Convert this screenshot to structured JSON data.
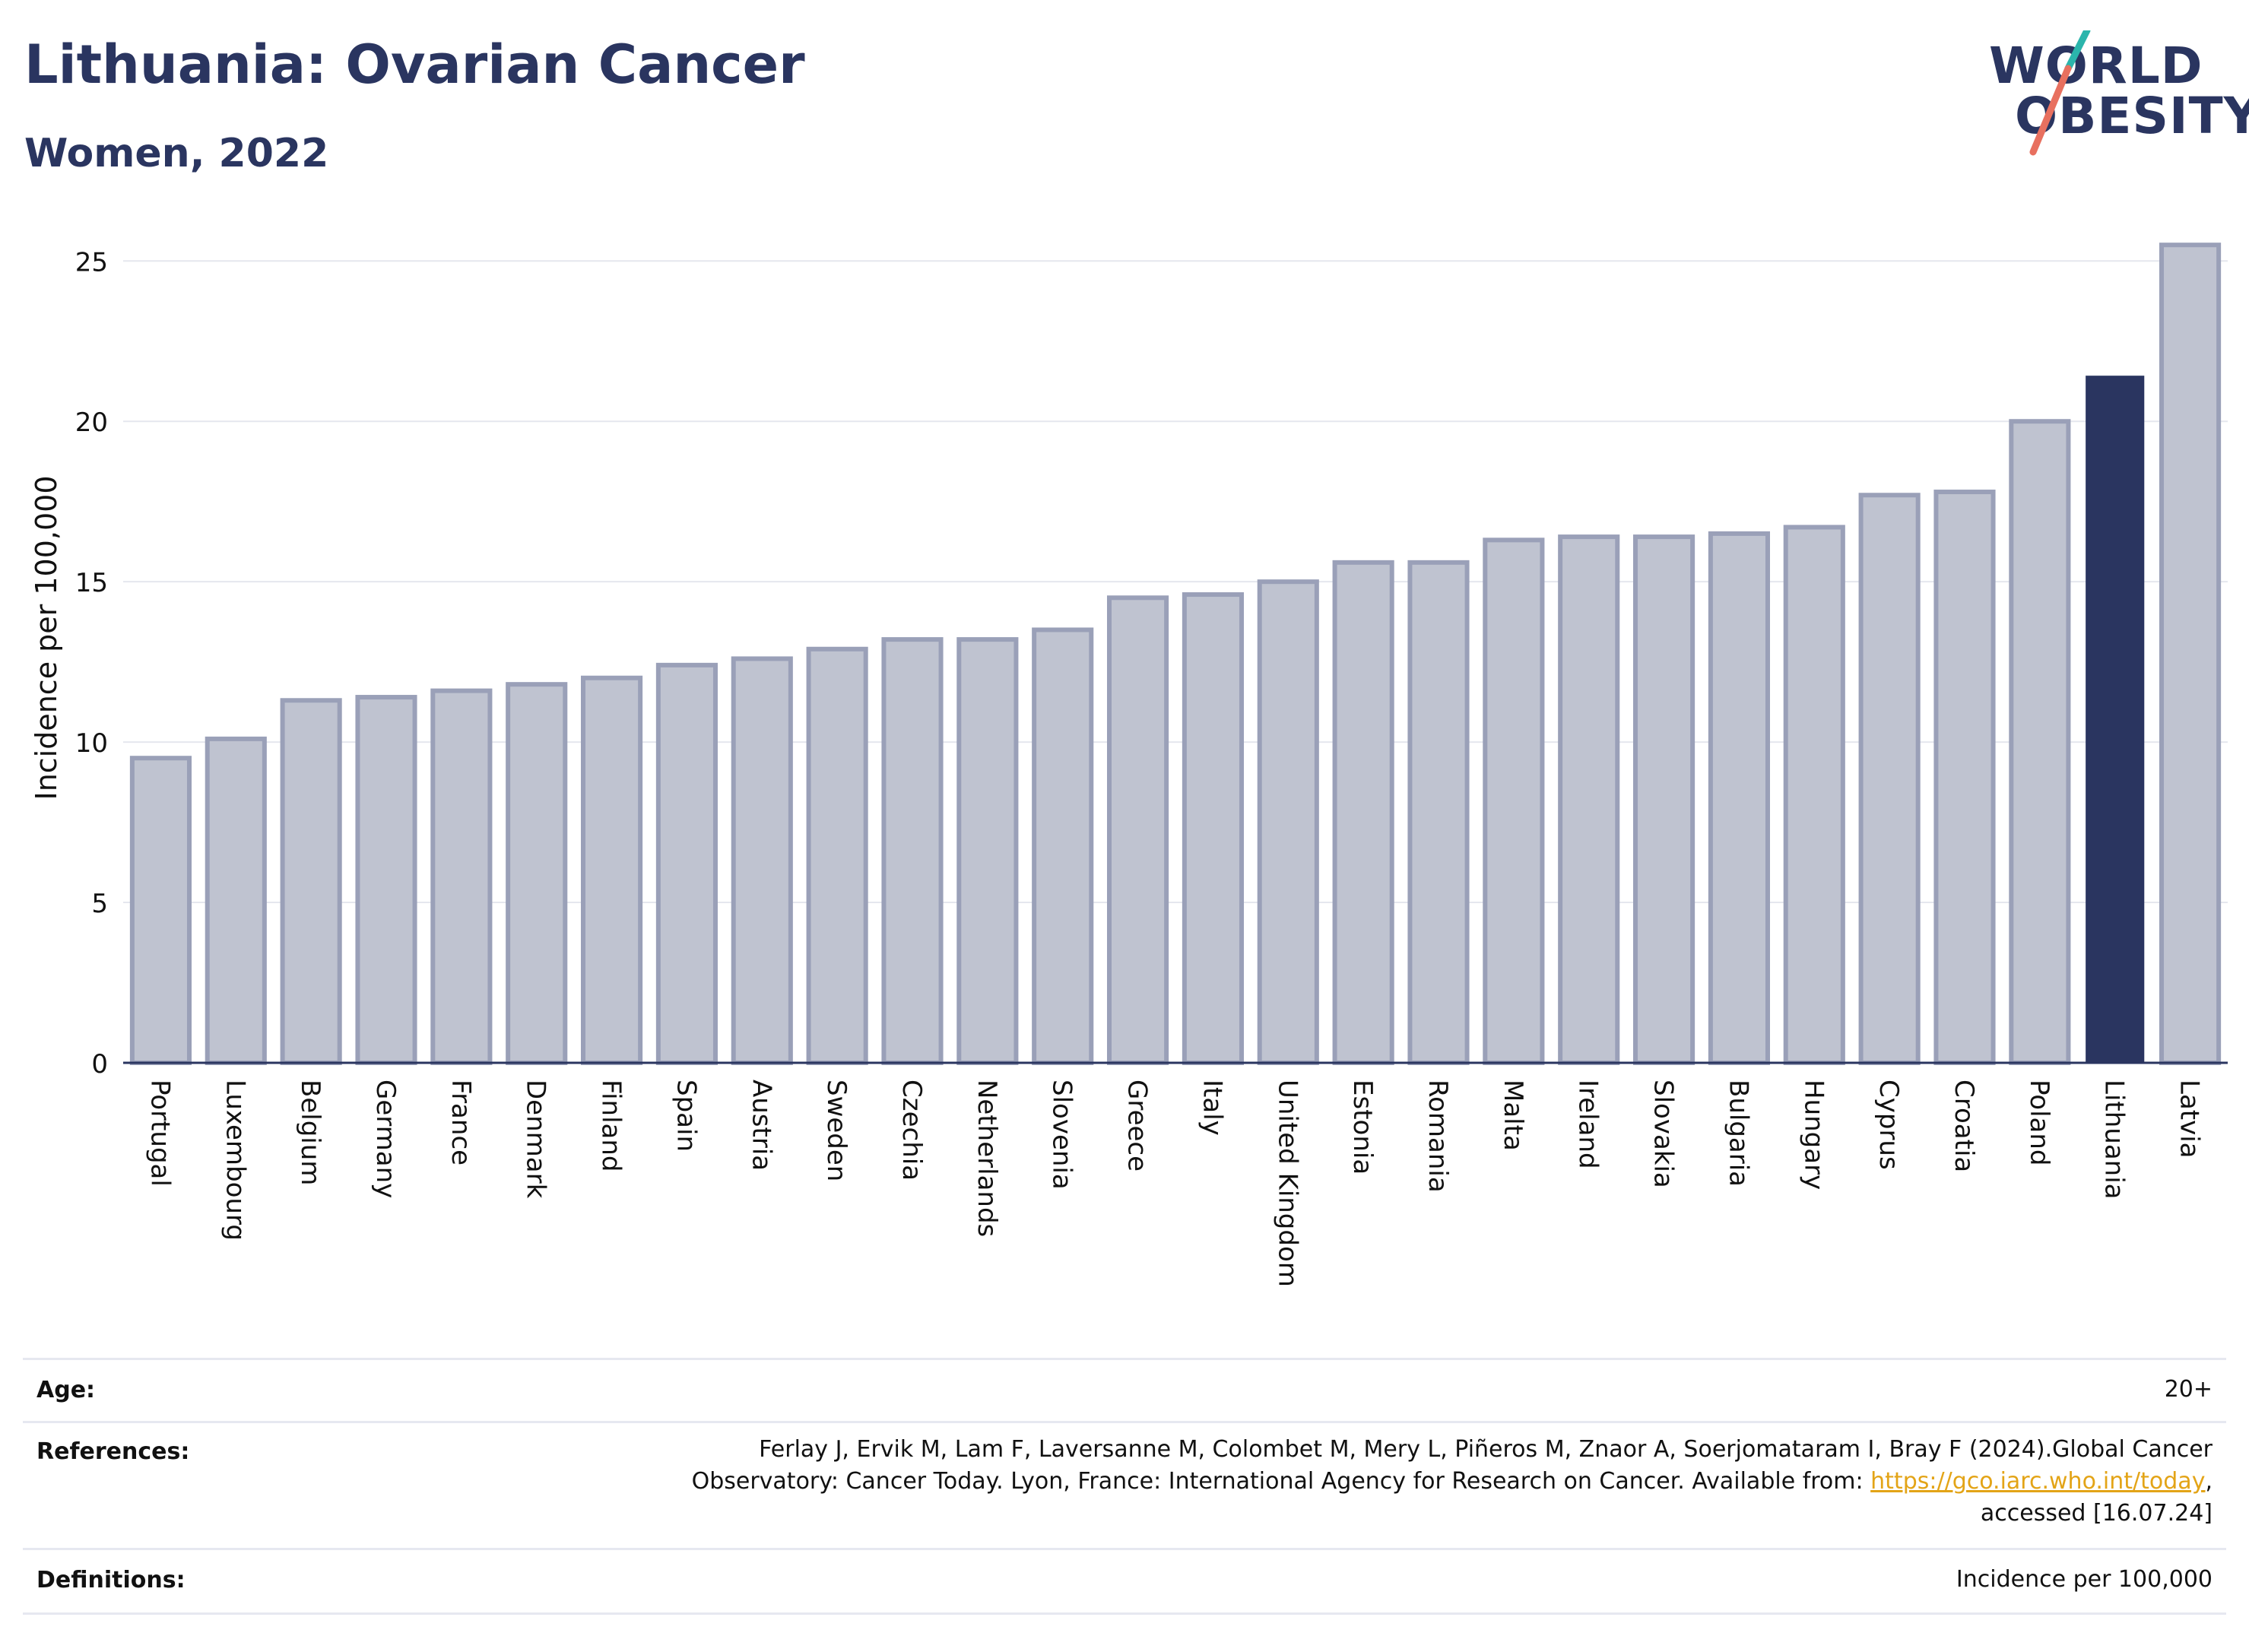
{
  "header": {
    "title": "Lithuania: Ovarian Cancer",
    "subtitle": "Women, 2022",
    "logo_line1": "WORLD",
    "logo_line2": "OBESITY"
  },
  "colors": {
    "highlight": "#2a3560",
    "bar": "#bfc3d0",
    "bar_border": "#9aa0b8",
    "logo_teal": "#2bb5ac",
    "logo_coral": "#e8705f",
    "link": "#e3a417"
  },
  "chart_data": {
    "type": "bar",
    "ylabel": "Incidence per 100,000",
    "ylim": [
      0,
      26.5
    ],
    "yticks": [
      0,
      5,
      10,
      15,
      20,
      25
    ],
    "grid": true,
    "highlight": "Lithuania",
    "categories": [
      "Portugal",
      "Luxembourg",
      "Belgium",
      "Germany",
      "France",
      "Denmark",
      "Finland",
      "Spain",
      "Austria",
      "Sweden",
      "Czechia",
      "Netherlands",
      "Slovenia",
      "Greece",
      "Italy",
      "United Kingdom",
      "Estonia",
      "Romania",
      "Malta",
      "Ireland",
      "Slovakia",
      "Bulgaria",
      "Hungary",
      "Cyprus",
      "Croatia",
      "Poland",
      "Lithuania",
      "Latvia"
    ],
    "values": [
      9.5,
      10.1,
      11.3,
      11.4,
      11.6,
      11.8,
      12.0,
      12.4,
      12.6,
      12.9,
      13.2,
      13.2,
      13.5,
      14.5,
      14.6,
      15.0,
      15.6,
      15.6,
      16.3,
      16.4,
      16.4,
      16.5,
      16.7,
      17.7,
      17.8,
      20.0,
      21.4,
      25.5
    ]
  },
  "info": {
    "age_label": "Age:",
    "age_value": "20+",
    "references_label": "References:",
    "references_line1": "Ferlay J, Ervik M, Lam F, Laversanne M, Colombet M, Mery L, Piñeros M, Znaor A, Soerjomataram I, Bray F (2024).Global Cancer",
    "references_line2_pre": "Observatory: Cancer Today. Lyon, France: International Agency for Research on Cancer. Available from: ",
    "references_link": "https://gco.iarc.who.int/today",
    "references_line2_post": ",",
    "references_line3": "accessed [16.07.24]",
    "definitions_label": "Definitions:",
    "definitions_value": "Incidence per 100,000"
  }
}
